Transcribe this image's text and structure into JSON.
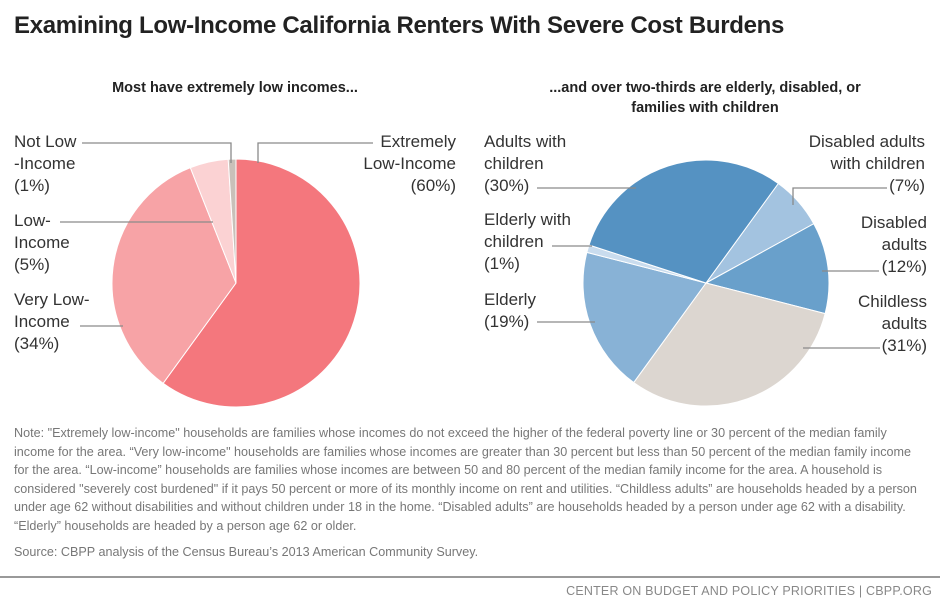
{
  "title": "Examining Low-Income California Renters With Severe Cost Burdens",
  "chart_data": [
    {
      "type": "pie",
      "title": "Most have extremely low incomes...",
      "start_angle_deg": 0,
      "slices": [
        {
          "label_lines": [
            "Extremely",
            "Low-Income"
          ],
          "value": 60,
          "value_label": "(60%)",
          "color": "#f4777d"
        },
        {
          "label_lines": [
            "Very Low-",
            "Income"
          ],
          "value": 34,
          "value_label": "(34%)",
          "color": "#f7a3a6"
        },
        {
          "label_lines": [
            "Low-",
            "Income"
          ],
          "value": 5,
          "value_label": "(5%)",
          "color": "#fbd2d3"
        },
        {
          "label_lines": [
            "Not Low",
            "-Income"
          ],
          "value": 1,
          "value_label": "(1%)",
          "color": "#c9c0b9"
        }
      ]
    },
    {
      "type": "pie",
      "title_lines": [
        "...and over two-thirds are elderly, disabled, or",
        "families with children"
      ],
      "start_angle_deg": 36,
      "slices": [
        {
          "label_lines": [
            "Disabled adults",
            "with children"
          ],
          "value": 7,
          "value_label": "(7%)",
          "color": "#a3c3e0"
        },
        {
          "label_lines": [
            "Disabled",
            "adults"
          ],
          "value": 12,
          "value_label": "(12%)",
          "color": "#69a0cb"
        },
        {
          "label_lines": [
            "Childless",
            "adults"
          ],
          "value": 31,
          "value_label": "(31%)",
          "color": "#dcd6d0"
        },
        {
          "label_lines": [
            "Elderly"
          ],
          "value": 19,
          "value_label": "(19%)",
          "color": "#88b2d6"
        },
        {
          "label_lines": [
            "Elderly with",
            "children"
          ],
          "value": 1,
          "value_label": "(1%)",
          "color": "#c9dcee"
        },
        {
          "label_lines": [
            "Adults with",
            "children"
          ],
          "value": 30,
          "value_label": "(30%)",
          "color": "#5592c2"
        }
      ]
    }
  ],
  "note": "Note: \"Extremely low-income\" households are families whose incomes do not exceed the higher of the federal poverty line or 30 percent of the median family income for the area. “Very low-income\" households are families whose incomes are greater than 30 percent but less than 50 percent of the median family income for the area. “Low-income” households are families whose incomes are between 50 and 80 percent of the median family income for the area. A household is considered \"severely cost burdened\" if it pays 50 percent or more of its monthly income on rent and utilities. “Childless adults” are households headed by a person under age 62 without disabilities and without children under 18 in the home. “Disabled adults” are households headed by a person under age 62 with a disability. “Elderly” households are headed by a person age 62 or older.",
  "source": "Source: CBPP analysis of the Census Bureau’s 2013 American Community Survey.",
  "footer": "CENTER ON BUDGET AND POLICY PRIORITIES | CBPP.ORG"
}
